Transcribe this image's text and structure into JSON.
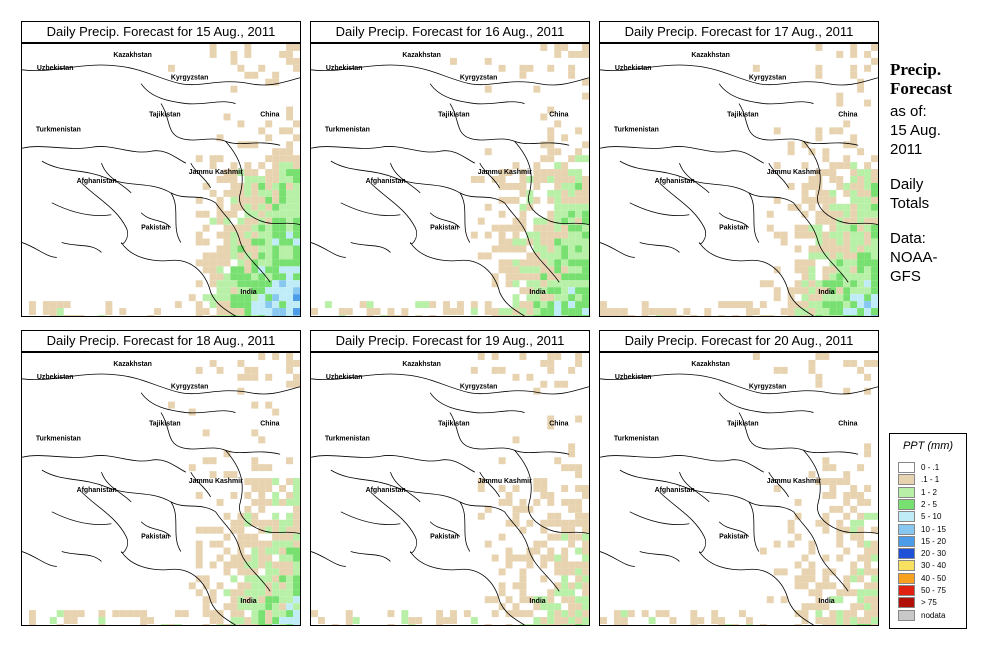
{
  "panels": [
    {
      "title": "Daily Precip. Forecast for  15 Aug., 2011",
      "intensity": 1.0
    },
    {
      "title": "Daily Precip. Forecast for  16 Aug., 2011",
      "intensity": 0.75
    },
    {
      "title": "Daily Precip. Forecast for  17 Aug., 2011",
      "intensity": 0.8
    },
    {
      "title": "Daily Precip. Forecast for  18 Aug., 2011",
      "intensity": 0.65
    },
    {
      "title": "Daily Precip. Forecast for  19 Aug., 2011",
      "intensity": 0.45
    },
    {
      "title": "Daily Precip. Forecast for  20 Aug., 2011",
      "intensity": 0.4
    }
  ],
  "map_labels": {
    "kazakhstan": "Kazakhstan",
    "uzbekistan": "Uzbekistan",
    "kyrgyzstan": "Kyrgyzstan",
    "tajikistan": "Tajikistan",
    "china": "China",
    "turkmenistan": "Turkmenistan",
    "afghanistan": "Afghanistan",
    "jammu_kashmir": "Jammu Kashmir",
    "pakistan": "Pakistan",
    "india": "India"
  },
  "side": {
    "title_line1": "Precip.",
    "title_line2": "Forecast",
    "asof_line1": "as of:",
    "asof_line2": "15 Aug.",
    "asof_line3": "2011",
    "type_line1": "Daily",
    "type_line2": "Totals",
    "data_line1": "Data:",
    "data_line2": "NOAA-",
    "data_line3": "GFS"
  },
  "legend": {
    "title": "PPT (mm)",
    "items": [
      {
        "label": "0 - .1",
        "color": "#ffffff"
      },
      {
        "label": ".1 - 1",
        "color": "#e8d3b0"
      },
      {
        "label": "1 - 2",
        "color": "#b8f0a8"
      },
      {
        "label": "2 - 5",
        "color": "#78e070"
      },
      {
        "label": "5 - 10",
        "color": "#c0ecf8"
      },
      {
        "label": "10 - 15",
        "color": "#88c8f0"
      },
      {
        "label": "15 - 20",
        "color": "#4c9ce8"
      },
      {
        "label": "20 - 30",
        "color": "#1f50d8"
      },
      {
        "label": "30 - 40",
        "color": "#f8e060"
      },
      {
        "label": "40 - 50",
        "color": "#f8a020"
      },
      {
        "label": "50 - 75",
        "color": "#e02010"
      },
      {
        "label": "> 75",
        "color": "#b01008"
      },
      {
        "label": "nodata",
        "color": "#c8c8c8"
      }
    ]
  }
}
